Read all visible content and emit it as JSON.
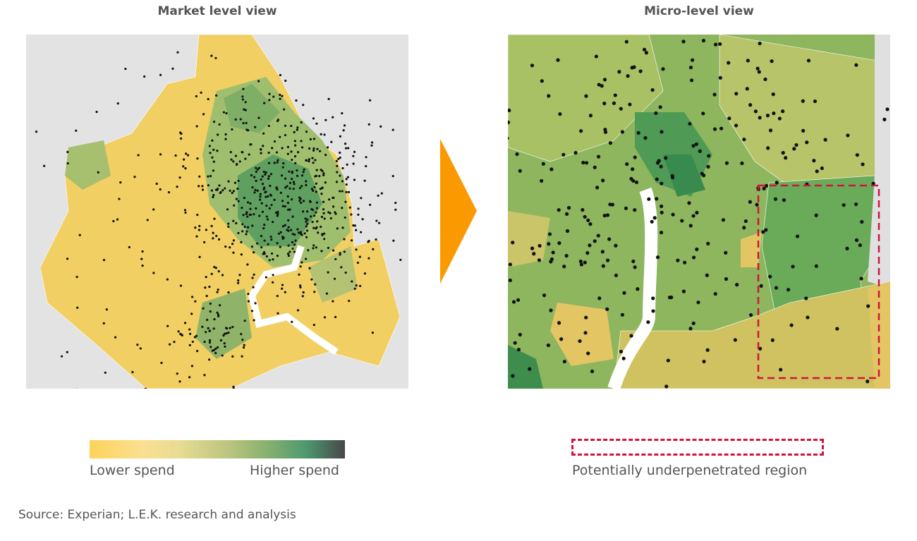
{
  "left_panel": {
    "title": "Market level view"
  },
  "right_panel": {
    "title": "Micro-level view"
  },
  "legend": {
    "low_label": "Lower spend",
    "high_label": "Higher spend",
    "colors": [
      "#fcd35a",
      "#fbdf8f",
      "#b9c47e",
      "#4d9870",
      "#474747"
    ]
  },
  "region_legend": {
    "label": "Potentially underpenetrated region",
    "color": "#d2143a"
  },
  "arrow_color": "#fb9a00",
  "source": "Source: Experian; L.E.K. research and analysis"
}
